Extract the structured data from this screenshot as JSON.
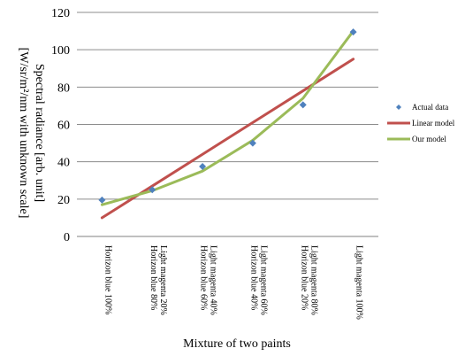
{
  "chart_data": {
    "type": "line",
    "title": "",
    "categories": [
      [
        "Horizon blue 100%"
      ],
      [
        "Light magenta 20%",
        "Horizon blue 80%"
      ],
      [
        "Light magenta 40%",
        "Horizon blue 60%"
      ],
      [
        "Light magenta 60%",
        "Horizon blue 40%"
      ],
      [
        "Light magenta 80%",
        "Horizon blue 20%"
      ],
      [
        "Light magenta 100%"
      ]
    ],
    "series": [
      {
        "name": "Actual data",
        "kind": "scatter",
        "marker": "diamond",
        "color": "#4f81bd",
        "values": [
          19.5,
          25,
          37.5,
          50,
          70.5,
          109.5
        ]
      },
      {
        "name": "Linear model",
        "kind": "line",
        "color": "#c0504d",
        "values": [
          10,
          27,
          44,
          61,
          78,
          95
        ]
      },
      {
        "name": "Our model",
        "kind": "line",
        "color": "#9bbb59",
        "values": [
          17,
          24.5,
          35,
          51.5,
          74,
          110
        ]
      }
    ],
    "xlabel": "Mixture of two paints",
    "ylabel_lines": [
      "Spectral radiance [arb. unit]",
      "[W/sr/m²/nm with unknown scale]"
    ],
    "ylim": [
      0,
      120
    ],
    "yticks": [
      0,
      20,
      40,
      60,
      80,
      100,
      120
    ],
    "grid": "horizontal",
    "legend_position": "right"
  }
}
